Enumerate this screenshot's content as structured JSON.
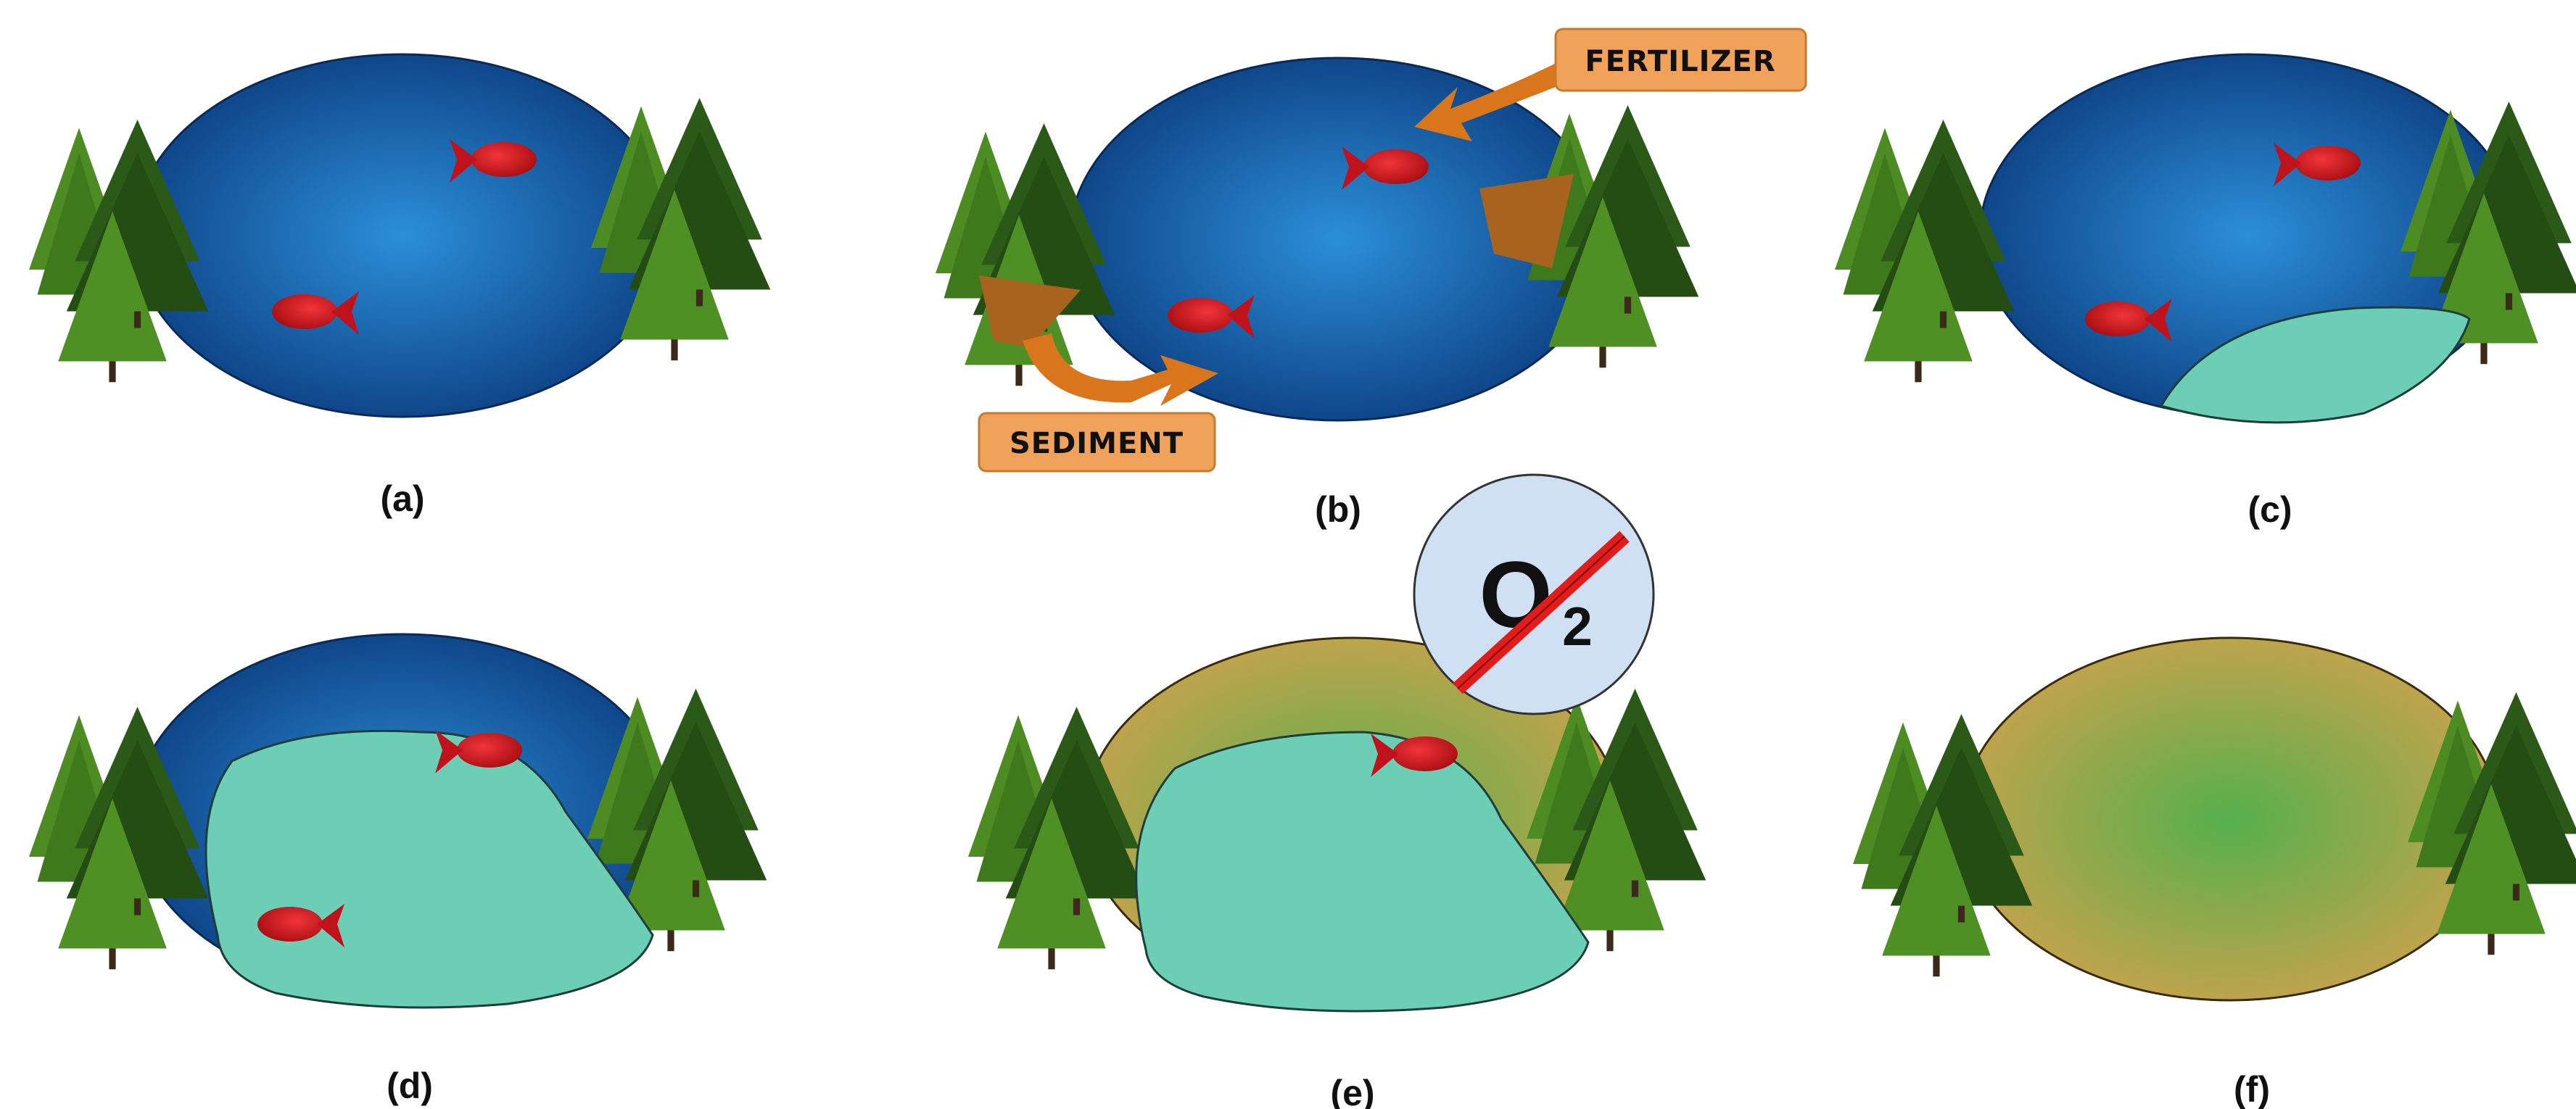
{
  "panels": [
    {
      "id": "a",
      "label": "(a)",
      "pond": "blue",
      "fish": 2,
      "algae": "none"
    },
    {
      "id": "b",
      "label": "(b)",
      "pond": "blue",
      "fish": 2,
      "algae": "none",
      "callouts": [
        "FERTILIZER",
        "SEDIMENT"
      ]
    },
    {
      "id": "c",
      "label": "(c)",
      "pond": "blue",
      "fish": 2,
      "algae": "small"
    },
    {
      "id": "d",
      "label": "(d)",
      "pond": "blue",
      "fish": 2,
      "algae": "large"
    },
    {
      "id": "e",
      "label": "(e)",
      "pond": "brown",
      "fish": 1,
      "algae": "large",
      "oxygen_badge": {
        "symbol": "O",
        "subscript": "2",
        "crossed": true
      }
    },
    {
      "id": "f",
      "label": "(f)",
      "pond": "brown",
      "fish": 0,
      "algae": "none"
    }
  ],
  "callouts": {
    "fertilizer": "FERTILIZER",
    "sediment": "SEDIMENT"
  },
  "colors": {
    "water_center": "#2b8fd8",
    "water_edge": "#0d3f82",
    "algae": "#6ccfb5",
    "fish": "#d4141a",
    "mud_center": "#55b04c",
    "mud_edge": "#c8a24c",
    "arrow": "#d9761c",
    "callout_bg": "#f0a25a",
    "tree_light": "#4c8c22",
    "tree_dark": "#2b5a18",
    "o2_badge": "#cfe0f2",
    "slash": "#e21b1b"
  }
}
